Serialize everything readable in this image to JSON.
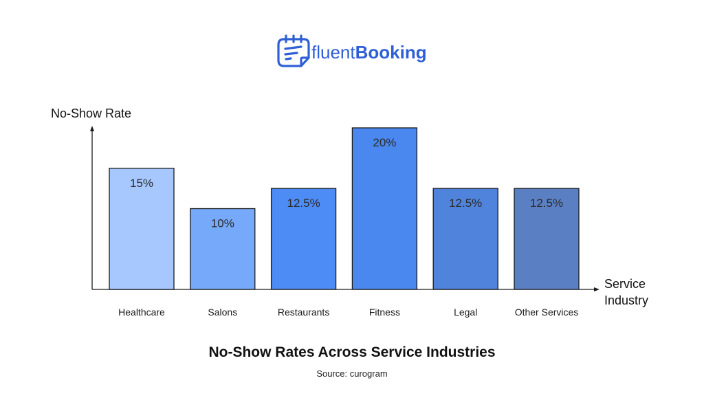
{
  "brand": {
    "name_light": "fluent",
    "name_bold": "Booking",
    "color": "#2f5fd6",
    "icon": "calendar-note-icon"
  },
  "chart_data": {
    "type": "bar",
    "title": "No-Show Rates Across Service Industries",
    "source": "Source: curogram",
    "ylabel": "No-Show Rate",
    "xlabel": [
      "Service",
      "Industry"
    ],
    "categories": [
      "Healthcare",
      "Salons",
      "Restaurants",
      "Fitness",
      "Legal",
      "Other Services"
    ],
    "values": [
      15,
      10,
      12.5,
      20,
      12.5,
      12.5
    ],
    "value_labels": [
      "15%",
      "10%",
      "12.5%",
      "20%",
      "12.5%",
      "12.5%"
    ],
    "unit": "%",
    "ylim": [
      0,
      20
    ],
    "grid": false,
    "legend": "none",
    "colors": [
      "#a6c8ff",
      "#77a9fa",
      "#4d8cf5",
      "#4a88ef",
      "#4f83dc",
      "#5a80c3"
    ],
    "edge_color": "#1a1a1a",
    "label_color": "#2b2b2b"
  }
}
